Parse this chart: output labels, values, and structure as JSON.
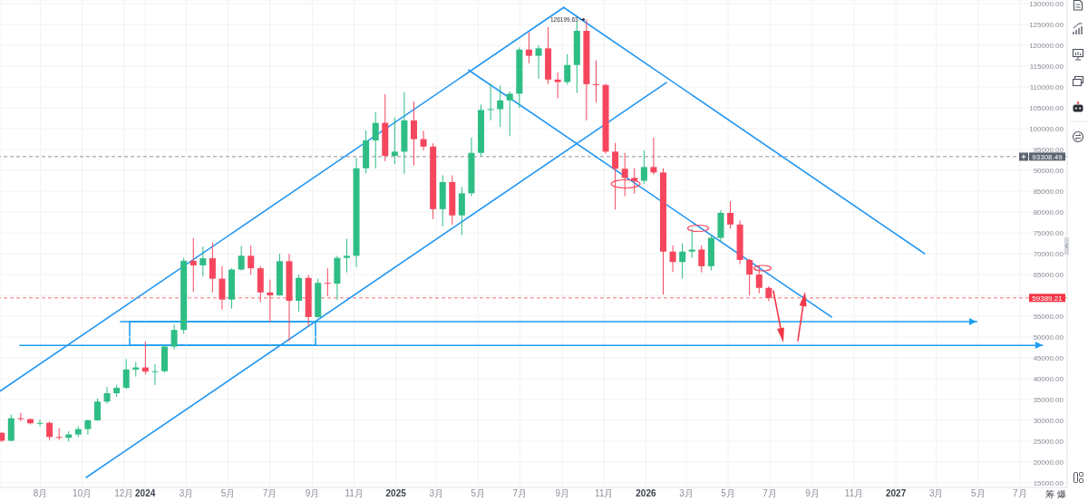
{
  "chart_data": {
    "type": "candlestick",
    "x": [
      "2023-06-05",
      "2023-06-19",
      "2023-07-03",
      "2023-07-17",
      "2023-07-31",
      "2023-08-14",
      "2023-08-28",
      "2023-09-11",
      "2023-09-25",
      "2023-10-09",
      "2023-10-23",
      "2023-11-06",
      "2023-11-20",
      "2023-12-04",
      "2023-12-18",
      "2024-01-01",
      "2024-01-15",
      "2024-01-29",
      "2024-02-12",
      "2024-02-26",
      "2024-03-11",
      "2024-03-25",
      "2024-04-08",
      "2024-04-22",
      "2024-05-06",
      "2024-05-20",
      "2024-06-03",
      "2024-06-17",
      "2024-07-01",
      "2024-07-15",
      "2024-07-29",
      "2024-08-12",
      "2024-08-26",
      "2024-09-09",
      "2024-09-23",
      "2024-10-07",
      "2024-10-21",
      "2024-11-04",
      "2024-11-18",
      "2024-12-02",
      "2024-12-16",
      "2024-12-30",
      "2025-01-13",
      "2025-01-27",
      "2025-02-10",
      "2025-02-24",
      "2025-03-10",
      "2025-03-24",
      "2025-04-07",
      "2025-04-21",
      "2025-05-05",
      "2025-05-19",
      "2025-06-02",
      "2025-06-16",
      "2025-06-30",
      "2025-07-14",
      "2025-07-28",
      "2025-08-11",
      "2025-08-25",
      "2025-09-08",
      "2025-09-22",
      "2025-10-06",
      "2025-10-20",
      "2025-11-03",
      "2025-11-17",
      "2025-12-01",
      "2025-12-15",
      "2025-12-29",
      "2026-01-12",
      "2026-01-26",
      "2026-02-09",
      "2026-02-23",
      "2026-03-09",
      "2026-03-23",
      "2026-04-06",
      "2026-04-20",
      "2026-05-04",
      "2026-05-18",
      "2026-06-01",
      "2026-06-15",
      "2026-06-29"
    ],
    "ohlc": [
      [
        27000,
        27200,
        24800,
        25100
      ],
      [
        25100,
        31400,
        25000,
        30500
      ],
      [
        30500,
        31800,
        29800,
        30300
      ],
      [
        30300,
        30400,
        29000,
        29300
      ],
      [
        29300,
        30200,
        28600,
        29400
      ],
      [
        29400,
        29700,
        25200,
        26000
      ],
      [
        26000,
        28100,
        25300,
        25800
      ],
      [
        25800,
        27400,
        24900,
        26600
      ],
      [
        26600,
        28600,
        26000,
        27900
      ],
      [
        27900,
        30200,
        26600,
        30000
      ],
      [
        30000,
        35200,
        29900,
        34500
      ],
      [
        34500,
        38000,
        34000,
        36500
      ],
      [
        36500,
        38500,
        35700,
        37800
      ],
      [
        37800,
        44700,
        37500,
        42200
      ],
      [
        42200,
        44000,
        40500,
        42700
      ],
      [
        42700,
        48900,
        41000,
        41700
      ],
      [
        41700,
        43500,
        38500,
        41800
      ],
      [
        41800,
        48000,
        41500,
        47700
      ],
      [
        47700,
        53000,
        47000,
        51700
      ],
      [
        51700,
        69000,
        50800,
        68300
      ],
      [
        68300,
        73700,
        60800,
        67200
      ],
      [
        67200,
        71700,
        64500,
        68900
      ],
      [
        68900,
        72700,
        60700,
        64000
      ],
      [
        64000,
        67000,
        56600,
        59000
      ],
      [
        59000,
        66500,
        56800,
        66200
      ],
      [
        66200,
        71900,
        66000,
        69500
      ],
      [
        69500,
        71900,
        65000,
        66500
      ],
      [
        66500,
        67000,
        58400,
        60700
      ],
      [
        60700,
        63800,
        53500,
        60000
      ],
      [
        60000,
        70000,
        59900,
        68200
      ],
      [
        68200,
        70000,
        49000,
        58700
      ],
      [
        58700,
        65000,
        56100,
        64200
      ],
      [
        64200,
        64900,
        52600,
        54800
      ],
      [
        54800,
        64000,
        54600,
        63000
      ],
      [
        63000,
        66500,
        59800,
        62800
      ],
      [
        62800,
        69500,
        58900,
        69000
      ],
      [
        69000,
        73600,
        65500,
        69500
      ],
      [
        69500,
        93000,
        66800,
        90500
      ],
      [
        90500,
        99600,
        89300,
        97200
      ],
      [
        97200,
        104000,
        90500,
        101400
      ],
      [
        101400,
        108300,
        92200,
        93500
      ],
      [
        93500,
        102700,
        91500,
        94500
      ],
      [
        94500,
        108800,
        89200,
        102000
      ],
      [
        102000,
        106500,
        91200,
        97500
      ],
      [
        97500,
        99500,
        94800,
        95700
      ],
      [
        95700,
        96500,
        78300,
        80700
      ],
      [
        80700,
        88800,
        76600,
        87200
      ],
      [
        87200,
        88800,
        77000,
        79200
      ],
      [
        79200,
        86000,
        74500,
        84500
      ],
      [
        84500,
        97900,
        83800,
        94200
      ],
      [
        94200,
        105800,
        93400,
        104500
      ],
      [
        104500,
        110800,
        102000,
        104700
      ],
      [
        104700,
        110400,
        100400,
        106800
      ],
      [
        106800,
        108900,
        98200,
        108400
      ],
      [
        108400,
        119500,
        105000,
        119000
      ],
      [
        119000,
        123200,
        115700,
        117500
      ],
      [
        117500,
        120000,
        112000,
        119300
      ],
      [
        119300,
        124400,
        110700,
        111800
      ],
      [
        111800,
        113500,
        107300,
        111200
      ],
      [
        111200,
        117900,
        110600,
        115300
      ],
      [
        115300,
        125700,
        108600,
        123500
      ],
      [
        123500,
        126199.63,
        102000,
        110700
      ],
      [
        110700,
        116400,
        106300,
        110500
      ],
      [
        110500,
        110800,
        94000,
        94500
      ],
      [
        94500,
        96600,
        80600,
        90400
      ],
      [
        90400,
        94200,
        83800,
        88200
      ],
      [
        88200,
        90500,
        84400,
        87500
      ],
      [
        87500,
        94800,
        86800,
        90800
      ],
      [
        90800,
        97900,
        89000,
        89500
      ],
      [
        89500,
        90500,
        60200,
        70500
      ],
      [
        70500,
        72000,
        65600,
        68000
      ],
      [
        68000,
        72500,
        64000,
        70500
      ],
      [
        70500,
        76000,
        69000,
        71000
      ],
      [
        71000,
        72000,
        65500,
        67000
      ],
      [
        67000,
        74500,
        66000,
        73800
      ],
      [
        73800,
        80500,
        72800,
        79800
      ],
      [
        79800,
        82600,
        76000,
        77000
      ],
      [
        77000,
        78000,
        67500,
        68500
      ],
      [
        68500,
        68800,
        60000,
        65000
      ],
      [
        65000,
        67200,
        60500,
        61800
      ],
      [
        61800,
        62200,
        58600,
        59389.21
      ]
    ],
    "colors": [
      "#f6465d",
      "#2ebd85",
      "#f6465d",
      "#f6465d",
      "#2ebd85",
      "#f6465d",
      "#f6465d",
      "#2ebd85",
      "#2ebd85",
      "#2ebd85",
      "#2ebd85",
      "#2ebd85",
      "#2ebd85",
      "#2ebd85",
      "#2ebd85",
      "#f6465d",
      "#2ebd85",
      "#2ebd85",
      "#2ebd85",
      "#2ebd85",
      "#f6465d",
      "#2ebd85",
      "#f6465d",
      "#f6465d",
      "#2ebd85",
      "#2ebd85",
      "#f6465d",
      "#f6465d",
      "#f6465d",
      "#2ebd85",
      "#f6465d",
      "#2ebd85",
      "#f6465d",
      "#2ebd85",
      "#f6465d",
      "#2ebd85",
      "#2ebd85",
      "#2ebd85",
      "#2ebd85",
      "#2ebd85",
      "#f6465d",
      "#2ebd85",
      "#2ebd85",
      "#f6465d",
      "#f6465d",
      "#f6465d",
      "#2ebd85",
      "#f6465d",
      "#2ebd85",
      "#2ebd85",
      "#2ebd85",
      "#2ebd85",
      "#2ebd85",
      "#2ebd85",
      "#2ebd85",
      "#f6465d",
      "#2ebd85",
      "#f6465d",
      "#f6465d",
      "#2ebd85",
      "#2ebd85",
      "#f6465d",
      "#f6465d",
      "#f6465d",
      "#f6465d",
      "#f6465d",
      "#f6465d",
      "#2ebd85",
      "#f6465d",
      "#f6465d",
      "#f6465d",
      "#2ebd85",
      "#2ebd85",
      "#f6465d",
      "#2ebd85",
      "#2ebd85",
      "#f6465d",
      "#f6465d",
      "#f6465d",
      "#f6465d",
      "#f6465d"
    ],
    "series": [
      {
        "type": "line",
        "color": "#2196f3",
        "x": [
          "2023-06-03",
          "2025-09-03"
        ],
        "values": [
          37000,
          129100
        ]
      },
      {
        "type": "line",
        "color": "#2196f3",
        "x": [
          "2023-10-07",
          "2026-01-31"
        ],
        "values": [
          16300,
          111100
        ]
      },
      {
        "type": "line",
        "color": "#2196f3",
        "x": [
          "2025-04-17",
          "2026-09-29"
        ],
        "values": [
          114100,
          54800
        ]
      },
      {
        "type": "line",
        "color": "#2196f3",
        "x": [
          "2025-09-03",
          "2027-02-12"
        ],
        "values": [
          129100,
          70000
        ]
      },
      {
        "type": "line",
        "color": "#1e9ef0",
        "x": [
          "2023-11-26",
          "2027-04-29"
        ],
        "values": [
          53700,
          53700
        ]
      },
      {
        "type": "line",
        "color": "#1e9ef0",
        "x": [
          "2023-07-02",
          "2027-08-03"
        ],
        "values": [
          48000,
          48000
        ]
      }
    ],
    "xlim": [
      "2023-06-03",
      "2027-09-08"
    ],
    "xticks": [
      {
        "value": "2023-08-01",
        "label": "8月"
      },
      {
        "value": "2023-10-01",
        "label": "10月"
      },
      {
        "value": "2023-12-01",
        "label": "12月"
      },
      {
        "value": "2024-01-01",
        "label": "2024"
      },
      {
        "value": "2024-03-01",
        "label": "3月"
      },
      {
        "value": "2024-05-01",
        "label": "5月"
      },
      {
        "value": "2024-07-01",
        "label": "7月"
      },
      {
        "value": "2024-09-01",
        "label": "9月"
      },
      {
        "value": "2024-11-01",
        "label": "11月"
      },
      {
        "value": "2025-01-01",
        "label": "2025"
      },
      {
        "value": "2025-03-01",
        "label": "3月"
      },
      {
        "value": "2025-05-01",
        "label": "5月"
      },
      {
        "value": "2025-07-01",
        "label": "7月"
      },
      {
        "value": "2025-09-01",
        "label": "9月"
      },
      {
        "value": "2025-11-01",
        "label": "11月"
      },
      {
        "value": "2026-01-01",
        "label": "2026"
      },
      {
        "value": "2026-03-01",
        "label": "3月"
      },
      {
        "value": "2026-05-01",
        "label": "5月"
      },
      {
        "value": "2026-07-01",
        "label": "7月"
      },
      {
        "value": "2026-09-01",
        "label": "9月"
      },
      {
        "value": "2026-11-01",
        "label": "11月"
      },
      {
        "value": "2027-01-01",
        "label": "2027"
      },
      {
        "value": "2027-03-01",
        "label": "3月"
      },
      {
        "value": "2027-05-01",
        "label": "5月"
      },
      {
        "value": "2027-07-01",
        "label": "7月"
      }
    ],
    "ylim": [
      13900,
      130900
    ],
    "yticks": [
      {
        "value": 15000,
        "label": "15000.00"
      },
      {
        "value": 20000,
        "label": "20000.00"
      },
      {
        "value": 25000,
        "label": "25000.00"
      },
      {
        "value": 30000,
        "label": "30000.00"
      },
      {
        "value": 35000,
        "label": "35000.00"
      },
      {
        "value": 40000,
        "label": "40000.00"
      },
      {
        "value": 45000,
        "label": "45000.00"
      },
      {
        "value": 50000,
        "label": "50000.00"
      },
      {
        "value": 55000,
        "label": "55000.00"
      },
      {
        "value": 60000,
        "label": null
      },
      {
        "value": 65000,
        "label": "65000.00"
      },
      {
        "value": 70000,
        "label": "70000.00"
      },
      {
        "value": 75000,
        "label": "75000.00"
      },
      {
        "value": 80000,
        "label": "80000.00"
      },
      {
        "value": 85000,
        "label": "85000.00"
      },
      {
        "value": 90000,
        "label": "90000.00"
      },
      {
        "value": 95000,
        "label": "95000.00"
      },
      {
        "value": 100000,
        "label": "100000.00"
      },
      {
        "value": 105000,
        "label": "105000.00"
      },
      {
        "value": 110000,
        "label": "110000.00"
      },
      {
        "value": 115000,
        "label": "115000.00"
      },
      {
        "value": 120000,
        "label": "120000.00"
      },
      {
        "value": 125000,
        "label": "125000.00"
      },
      {
        "value": 130000,
        "label": "130000.00"
      }
    ],
    "grid": true,
    "ref_lines": [
      {
        "axis": "y",
        "value": 93308.49,
        "label": "93308.49",
        "color": "#5b6472",
        "line_style": "dashed"
      },
      {
        "axis": "y",
        "value": 59389.21,
        "label": "59389.21",
        "color": "#f23645",
        "line_style": "dashed"
      }
    ],
    "annotations": [
      {
        "text": "126199.63",
        "x": "2025-10-06",
        "y": 126199.63
      },
      "筹",
      "爆"
    ]
  }
}
